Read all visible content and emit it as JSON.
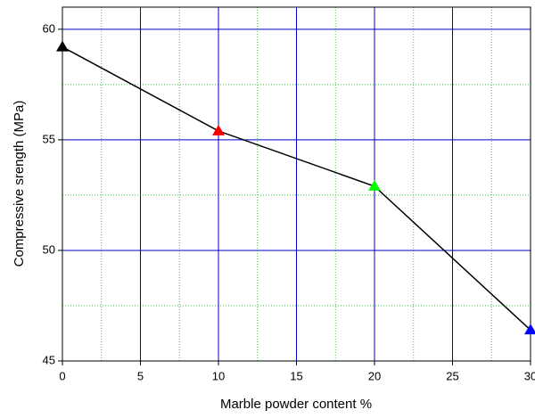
{
  "chart_data": {
    "type": "line",
    "xlabel": "Marble powder content %",
    "ylabel": "Compressive srength (MPa)",
    "x": [
      0,
      10,
      20,
      30
    ],
    "series": [
      {
        "values": [
          59.2,
          55.4,
          52.9,
          46.4
        ],
        "color": "#000000",
        "marker": "triangle",
        "marker_colors": [
          "#000000",
          "#ff0000",
          "#00ff00",
          "#0000ff"
        ]
      }
    ],
    "xlim": [
      0,
      30
    ],
    "ylim": [
      45,
      61
    ],
    "xticks": [
      0,
      5,
      10,
      15,
      20,
      25,
      30
    ],
    "yticks": [
      45,
      50,
      55,
      60
    ],
    "minor_xticks": [
      2.5,
      7.5,
      12.5,
      17.5,
      22.5,
      27.5
    ],
    "minor_yticks": [
      47.5,
      52.5,
      57.5
    ],
    "grid": true,
    "grid_color": "#0000cc",
    "minor_grid_color": "#33cc33"
  }
}
